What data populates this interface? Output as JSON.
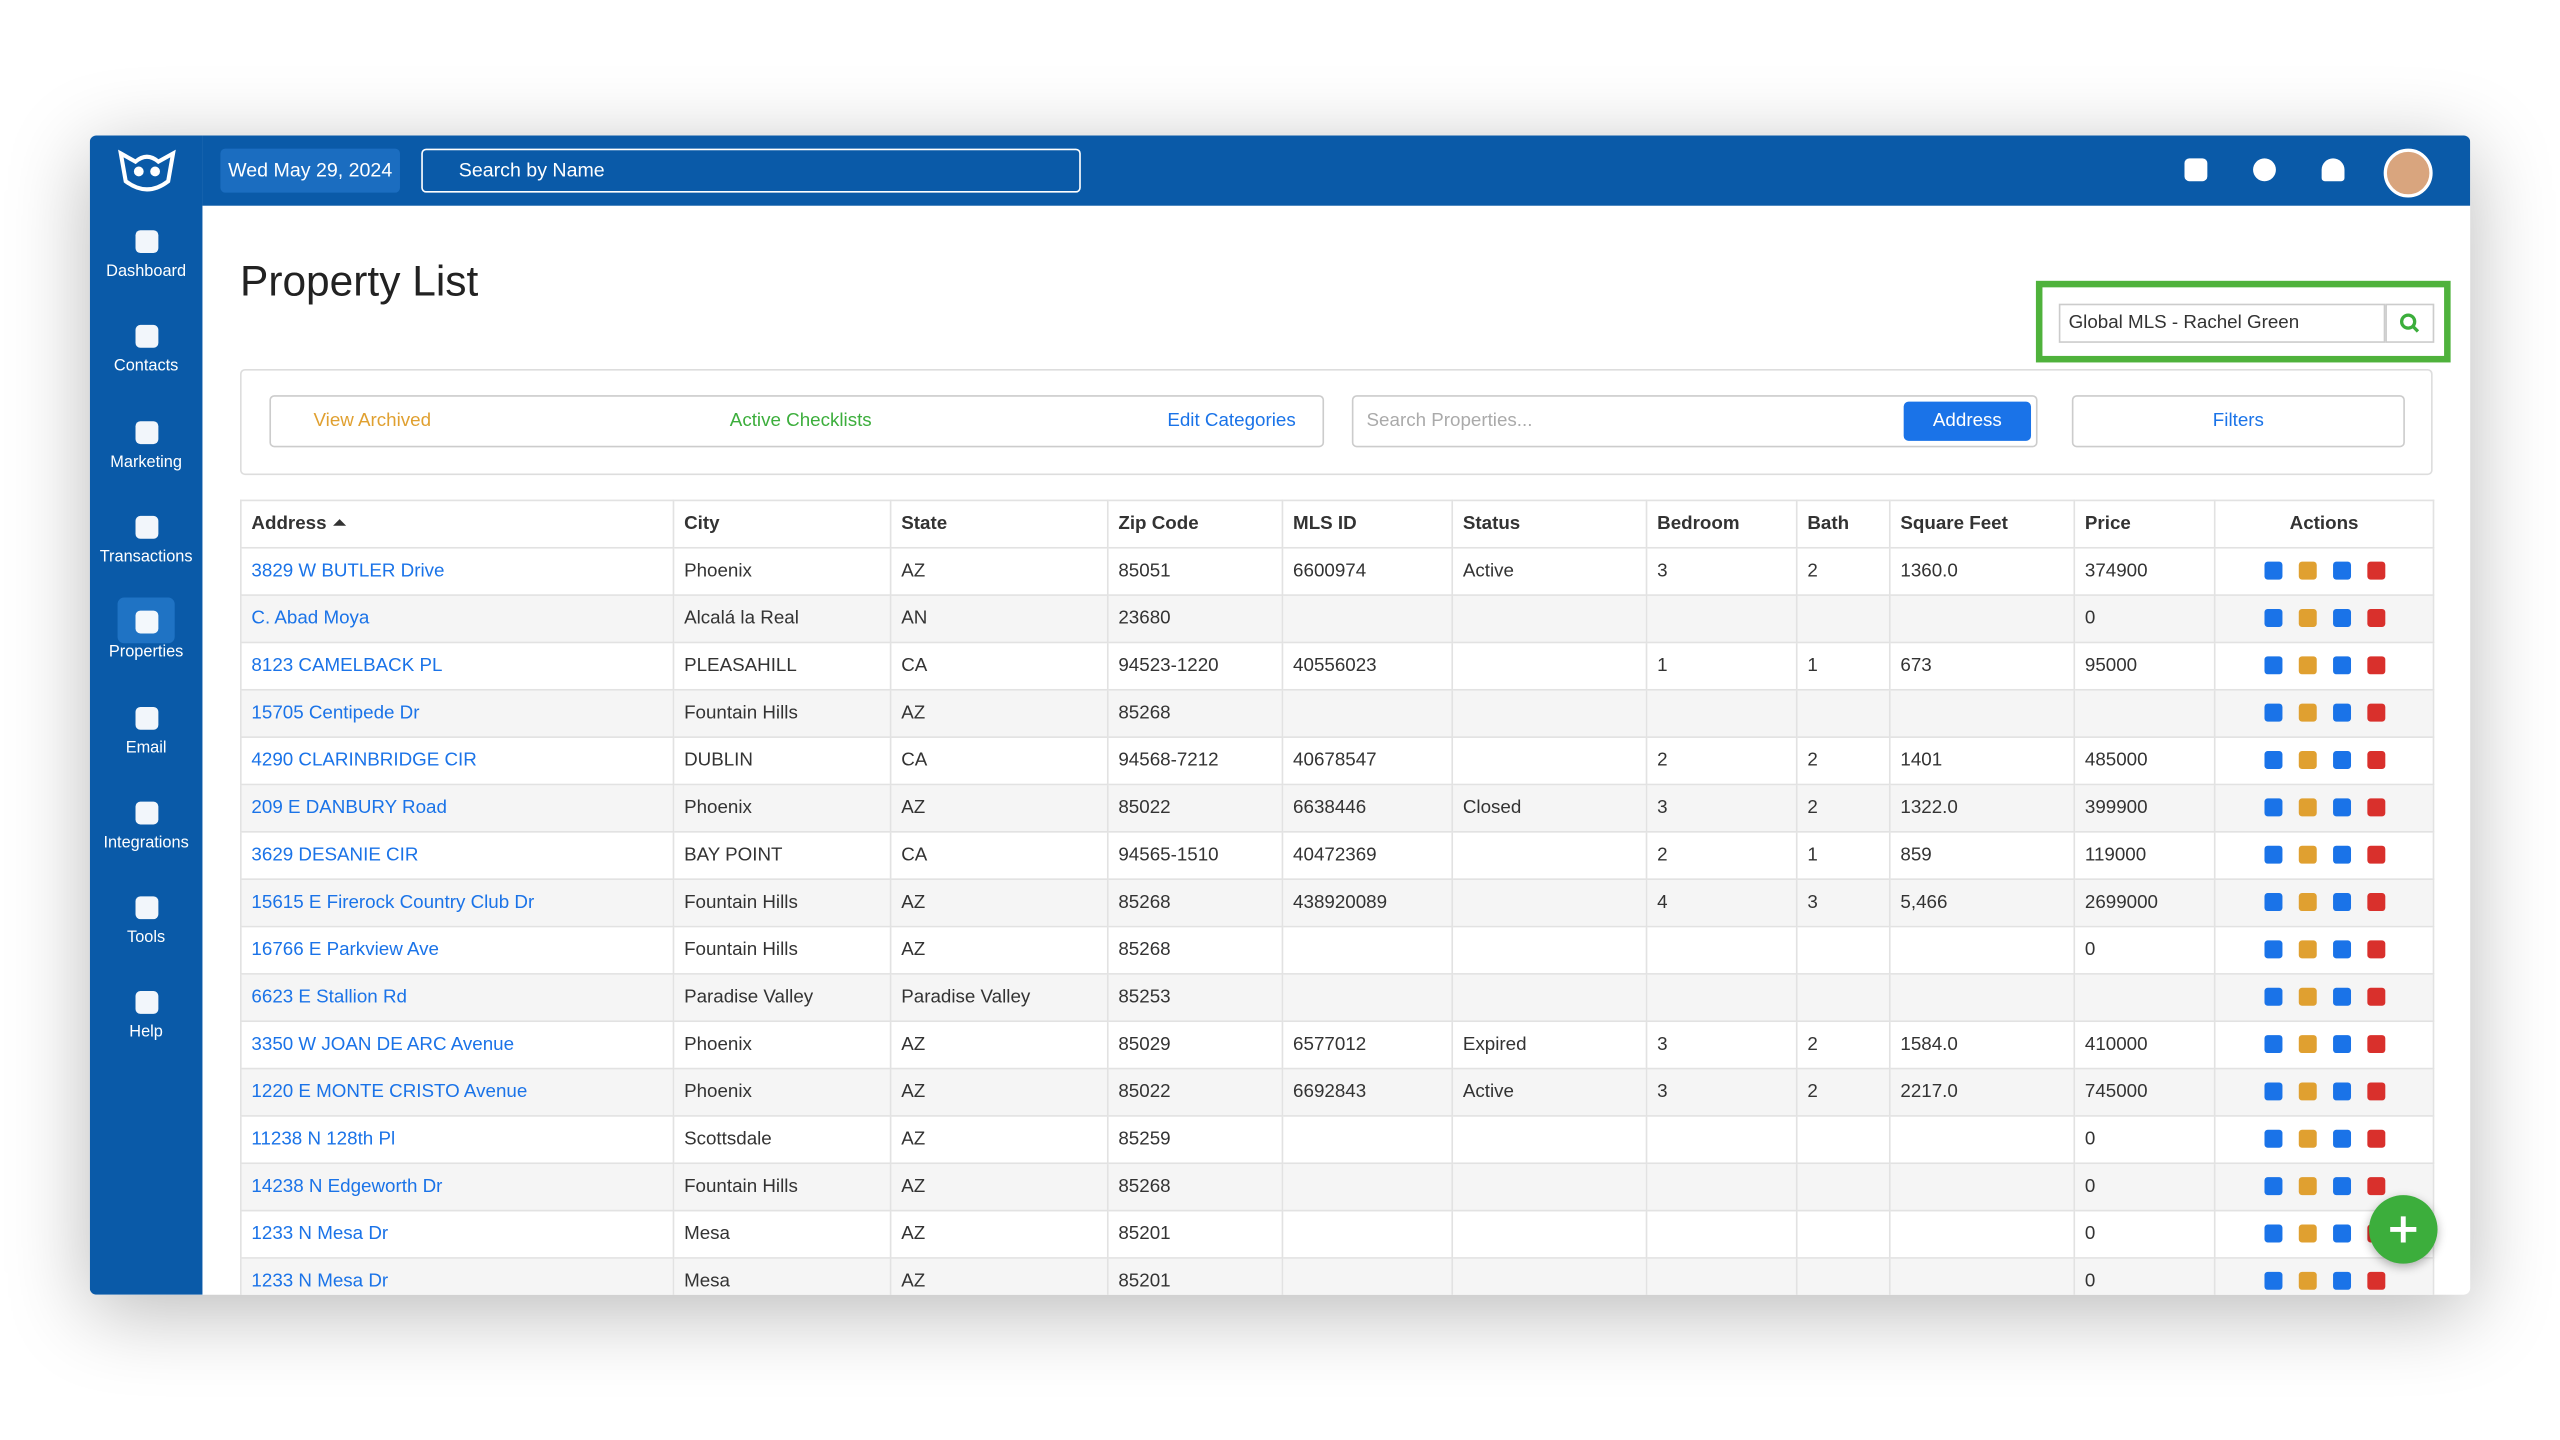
{
  "sidebar": {
    "items": [
      "Dashboard",
      "Contacts",
      "Marketing",
      "Transactions",
      "Properties",
      "Email",
      "Integrations",
      "Tools",
      "Help"
    ]
  },
  "topbar": {
    "date": "Wed May 29, 2024",
    "search_placeholder": "Search by Name"
  },
  "page": {
    "title": "Property List",
    "mls_selector": "Global MLS - Rachel Green"
  },
  "toolbar": {
    "view_archived": "View Archived",
    "active_checklists": "Active Checklists",
    "edit_categories": "Edit Categories",
    "search_placeholder": "Search Properties...",
    "search_field": "Address",
    "filters": "Filters"
  },
  "table": {
    "columns": [
      "Address",
      "City",
      "State",
      "Zip Code",
      "MLS ID",
      "Status",
      "Bedroom",
      "Bath",
      "Square Feet",
      "Price",
      "Actions"
    ],
    "rows": [
      [
        "3829 W BUTLER Drive",
        "Phoenix",
        "AZ",
        "85051",
        "6600974",
        "Active",
        "3",
        "2",
        "1360.0",
        "374900"
      ],
      [
        "C. Abad Moya",
        "Alcalá la Real",
        "AN",
        "23680",
        null,
        null,
        null,
        null,
        null,
        "0"
      ],
      [
        "8123 CAMELBACK PL",
        "PLEASAHILL",
        "CA",
        "94523-1220",
        "40556023",
        null,
        "1",
        "1",
        "673",
        "95000"
      ],
      [
        "15705 Centipede Dr",
        "Fountain Hills",
        "AZ",
        "85268",
        null,
        null,
        null,
        null,
        null,
        null
      ],
      [
        "4290 CLARINBRIDGE CIR",
        "DUBLIN",
        "CA",
        "94568-7212",
        "40678547",
        null,
        "2",
        "2",
        "1401",
        "485000"
      ],
      [
        "209 E DANBURY Road",
        "Phoenix",
        "AZ",
        "85022",
        "6638446",
        "Closed",
        "3",
        "2",
        "1322.0",
        "399900"
      ],
      [
        "3629 DESANIE CIR",
        "BAY POINT",
        "CA",
        "94565-1510",
        "40472369",
        null,
        "2",
        "1",
        "859",
        "119000"
      ],
      [
        "15615 E Firerock Country Club Dr",
        "Fountain Hills",
        "AZ",
        "85268",
        "438920089",
        null,
        "4",
        "3",
        "5,466",
        "2699000"
      ],
      [
        "16766 E Parkview Ave",
        "Fountain Hills",
        "AZ",
        "85268",
        null,
        null,
        null,
        null,
        null,
        "0"
      ],
      [
        "6623 E Stallion Rd",
        "Paradise Valley",
        "Paradise Valley",
        "85253",
        null,
        null,
        null,
        null,
        null,
        null
      ],
      [
        "3350 W JOAN DE ARC Avenue",
        "Phoenix",
        "AZ",
        "85029",
        "6577012",
        "Expired",
        "3",
        "2",
        "1584.0",
        "410000"
      ],
      [
        "1220 E MONTE CRISTO Avenue",
        "Phoenix",
        "AZ",
        "85022",
        "6692843",
        "Active",
        "3",
        "2",
        "2217.0",
        "745000"
      ],
      [
        "11238 N 128th Pl",
        "Scottsdale",
        "AZ",
        "85259",
        null,
        null,
        null,
        null,
        null,
        "0"
      ],
      [
        "14238 N Edgeworth Dr",
        "Fountain Hills",
        "AZ",
        "85268",
        null,
        null,
        null,
        null,
        null,
        "0"
      ],
      [
        "1233 N Mesa Dr",
        "Mesa",
        "AZ",
        "85201",
        null,
        null,
        null,
        null,
        null,
        "0"
      ],
      [
        "1233 N Mesa Dr",
        "Mesa",
        "AZ",
        "85201",
        null,
        null,
        null,
        null,
        null,
        "0"
      ]
    ]
  }
}
